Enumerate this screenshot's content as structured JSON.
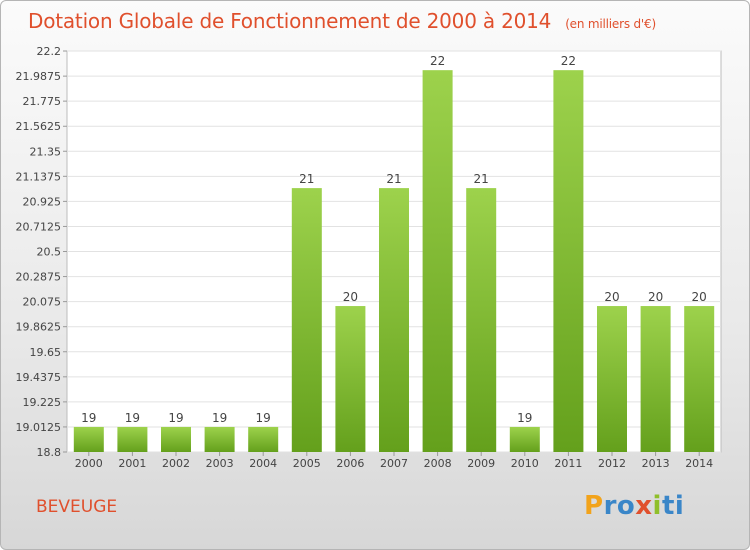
{
  "title": "Dotation Globale de Fonctionnement de 2000 à 2014",
  "subtitle": "(en milliers d'€)",
  "commune": "BEVEUGE",
  "logo": {
    "letters": [
      "P",
      "r",
      "o",
      "x",
      "i",
      "t",
      "i"
    ],
    "colors": [
      "#f2a31b",
      "#3a86c8",
      "#3a86c8",
      "#e0502d",
      "#8fbf2a",
      "#3a86c8",
      "#3a86c8"
    ]
  },
  "chart_data": {
    "type": "bar",
    "categories": [
      "2000",
      "2001",
      "2002",
      "2003",
      "2004",
      "2005",
      "2006",
      "2007",
      "2008",
      "2009",
      "2010",
      "2011",
      "2012",
      "2013",
      "2014"
    ],
    "values": [
      19.0125,
      19.0125,
      19.0125,
      19.0125,
      19.0125,
      21.0375,
      20.0375,
      21.0375,
      22.0375,
      21.0375,
      19.0125,
      22.0375,
      20.0375,
      20.0375,
      20.0375
    ],
    "data_labels": [
      "19",
      "19",
      "19",
      "19",
      "19",
      "21",
      "20",
      "21",
      "22",
      "21",
      "19",
      "22",
      "20",
      "20",
      "20"
    ],
    "y_ticks": [
      "18.8",
      "19.0125",
      "19.225",
      "19.4375",
      "19.65",
      "19.8625",
      "20.075",
      "20.2875",
      "20.5",
      "20.7125",
      "20.925",
      "21.1375",
      "21.35",
      "21.5625",
      "21.775",
      "21.9875",
      "22.2"
    ],
    "ylim": [
      18.8,
      22.2
    ],
    "grid": true,
    "bar_color": "#7ab32e",
    "xlabel": "",
    "ylabel": ""
  }
}
